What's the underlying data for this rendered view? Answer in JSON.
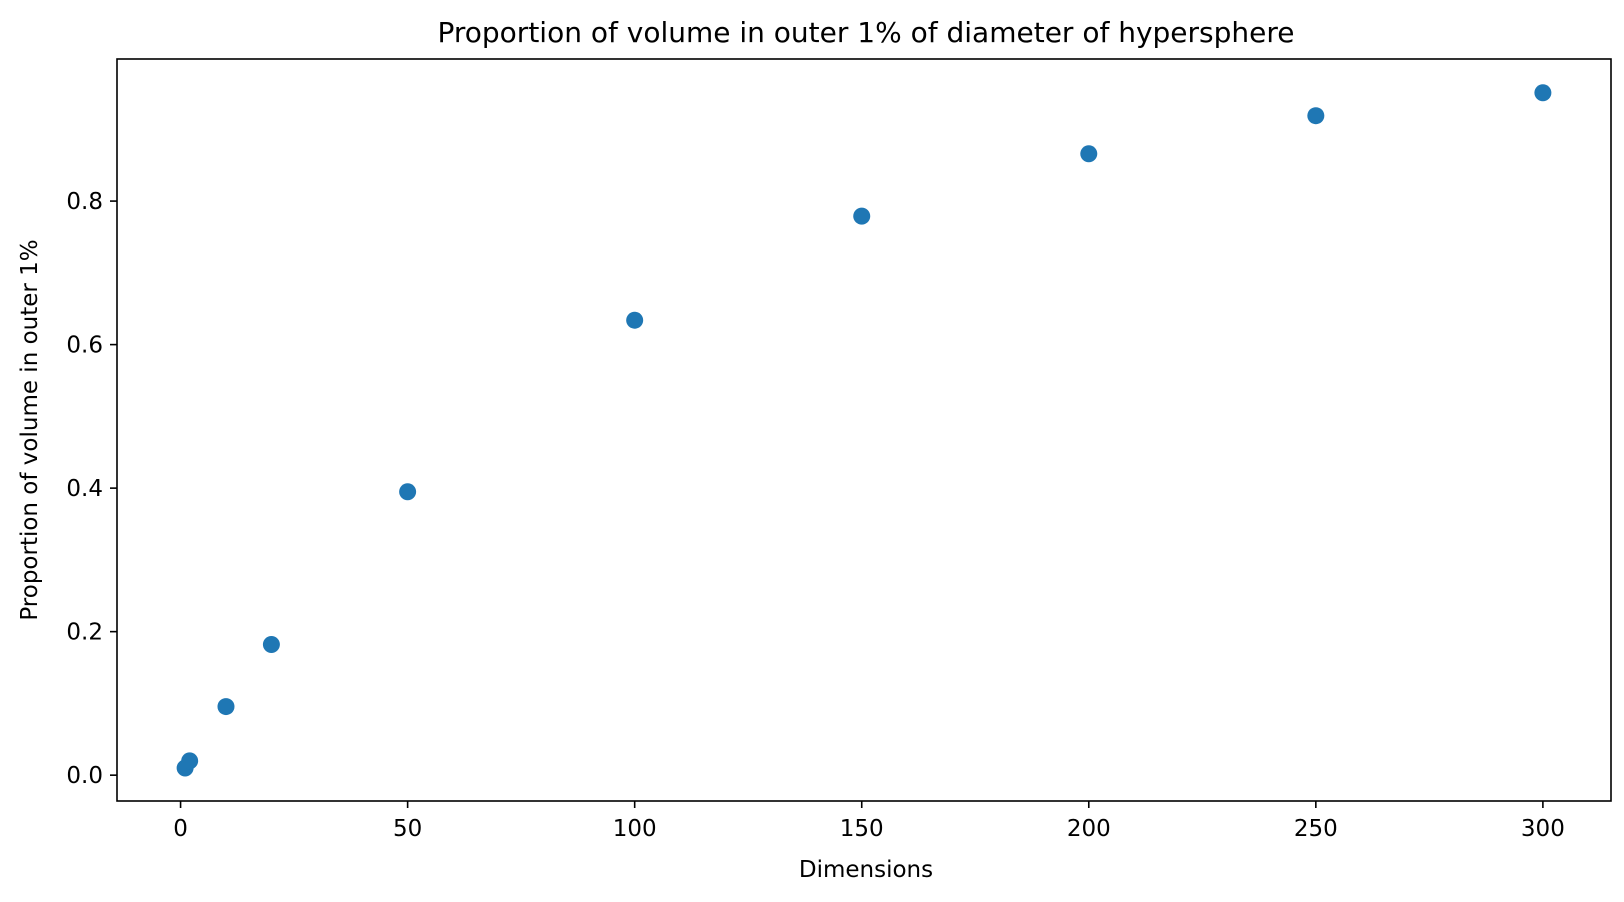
{
  "chart_data": {
    "type": "scatter",
    "title": "Proportion of volume in outer 1% of diameter of hypersphere",
    "xlabel": "Dimensions",
    "ylabel": "Proportion of volume in outer 1%",
    "xlim": [
      -14,
      315
    ],
    "ylim": [
      -0.036,
      0.998
    ],
    "xticks": [
      0,
      50,
      100,
      150,
      200,
      250,
      300
    ],
    "xtick_labels": [
      "0",
      "50",
      "100",
      "150",
      "200",
      "250",
      "300"
    ],
    "yticks": [
      0.0,
      0.2,
      0.4,
      0.6,
      0.8
    ],
    "ytick_labels": [
      "0.0",
      "0.2",
      "0.4",
      "0.6",
      "0.8"
    ],
    "grid": false,
    "legend": false,
    "marker_color": "#1f77b4",
    "series": [
      {
        "x": [
          1,
          2,
          10,
          20,
          50,
          100,
          150,
          200,
          250,
          300
        ],
        "y": [
          0.01,
          0.0199,
          0.0956,
          0.1821,
          0.395,
          0.634,
          0.779,
          0.866,
          0.919,
          0.951
        ]
      }
    ]
  }
}
